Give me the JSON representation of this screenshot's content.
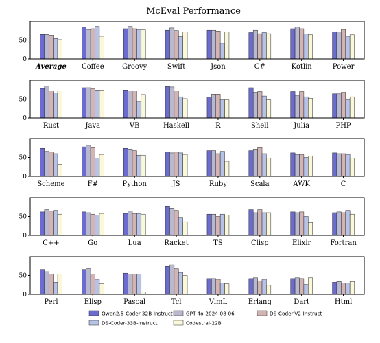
{
  "chart_data": {
    "type": "bar",
    "title": "McEval Performance",
    "ylim": [
      0,
      100
    ],
    "yticks": [
      0,
      50
    ],
    "grid": false,
    "legend_position": "bottom",
    "series": [
      {
        "name": "Qwen2.5-Coder-32B-Instruct",
        "color": "#6b6bd0"
      },
      {
        "name": "GPT-4o-2024-08-06",
        "color": "#b8b8ce"
      },
      {
        "name": "DS-Coder-V2-Instruct",
        "color": "#d2b4b4"
      },
      {
        "name": "DS-Coder-33B-Instruct",
        "color": "#b7c3e6"
      },
      {
        "name": "Codestral-22B",
        "color": "#fbf8da"
      }
    ],
    "panels": [
      {
        "groups": [
          {
            "label": "Average",
            "emphasis": true,
            "values": [
              65,
              65,
              63,
              54,
              51
            ]
          },
          {
            "label": "Coffee",
            "values": [
              84,
              78,
              80,
              86,
              60
            ]
          },
          {
            "label": "Groovy",
            "values": [
              80,
              86,
              80,
              78,
              77
            ]
          },
          {
            "label": "Swift",
            "values": [
              76,
              82,
              75,
              59,
              72
            ]
          },
          {
            "label": "Json",
            "values": [
              76,
              76,
              74,
              42,
              72
            ]
          },
          {
            "label": "C#",
            "values": [
              70,
              76,
              67,
              70,
              67
            ]
          },
          {
            "label": "Kotlin",
            "values": [
              80,
              84,
              80,
              66,
              64
            ]
          },
          {
            "label": "Power",
            "values": [
              72,
              72,
              78,
              60,
              64
            ]
          }
        ]
      },
      {
        "groups": [
          {
            "label": "Rust",
            "values": [
              78,
              84,
              72,
              66,
              72
            ]
          },
          {
            "label": "Java",
            "values": [
              80,
              80,
              78,
              74,
              74
            ]
          },
          {
            "label": "VB",
            "values": [
              74,
              72,
              72,
              44,
              62
            ]
          },
          {
            "label": "Haskell",
            "values": [
              83,
              82,
              72,
              56,
              51
            ]
          },
          {
            "label": "R",
            "values": [
              55,
              63,
              63,
              48,
              48
            ]
          },
          {
            "label": "Shell",
            "values": [
              80,
              68,
              70,
              58,
              48
            ]
          },
          {
            "label": "Julia",
            "values": [
              70,
              60,
              70,
              56,
              52
            ]
          },
          {
            "label": "PHP",
            "values": [
              64,
              64,
              68,
              48,
              56
            ]
          }
        ]
      },
      {
        "groups": [
          {
            "label": "Scheme",
            "values": [
              74,
              66,
              64,
              60,
              32
            ]
          },
          {
            "label": "F#",
            "values": [
              78,
              82,
              76,
              48,
              58
            ]
          },
          {
            "label": "Python",
            "values": [
              74,
              72,
              68,
              56,
              56
            ]
          },
          {
            "label": "JS",
            "values": [
              64,
              62,
              64,
              62,
              58
            ]
          },
          {
            "label": "Ruby",
            "values": [
              68,
              68,
              60,
              66,
              40
            ]
          },
          {
            "label": "Scala",
            "values": [
              68,
              72,
              76,
              60,
              48
            ]
          },
          {
            "label": "AWK",
            "values": [
              62,
              58,
              58,
              50,
              54
            ]
          },
          {
            "label": "C",
            "values": [
              62,
              60,
              60,
              58,
              48
            ]
          }
        ]
      },
      {
        "groups": [
          {
            "label": "C++",
            "values": [
              62,
              68,
              64,
              66,
              56
            ]
          },
          {
            "label": "Go",
            "values": [
              62,
              60,
              56,
              54,
              58
            ]
          },
          {
            "label": "Lua",
            "values": [
              58,
              64,
              58,
              58,
              56
            ]
          },
          {
            "label": "Racket",
            "values": [
              76,
              72,
              66,
              46,
              36
            ]
          },
          {
            "label": "TS",
            "values": [
              56,
              56,
              50,
              56,
              54
            ]
          },
          {
            "label": "Clisp",
            "values": [
              68,
              60,
              68,
              60,
              60
            ]
          },
          {
            "label": "Elixir",
            "values": [
              62,
              60,
              62,
              50,
              34
            ]
          },
          {
            "label": "Fortran",
            "values": [
              60,
              62,
              60,
              66,
              56
            ]
          }
        ]
      },
      {
        "groups": [
          {
            "label": "Perl",
            "values": [
              66,
              60,
              54,
              32,
              54
            ]
          },
          {
            "label": "Elisp",
            "values": [
              66,
              68,
              54,
              40,
              28
            ]
          },
          {
            "label": "Pascal",
            "values": [
              56,
              54,
              54,
              54,
              6
            ]
          },
          {
            "label": "Tcl",
            "values": [
              74,
              78,
              68,
              58,
              50
            ]
          },
          {
            "label": "VimL",
            "values": [
              42,
              42,
              40,
              30,
              28
            ]
          },
          {
            "label": "Erlang",
            "values": [
              42,
              44,
              36,
              40,
              24
            ]
          },
          {
            "label": "Dart",
            "values": [
              42,
              44,
              42,
              26,
              44
            ]
          },
          {
            "label": "Html",
            "values": [
              32,
              34,
              30,
              30,
              34
            ]
          }
        ]
      }
    ]
  }
}
